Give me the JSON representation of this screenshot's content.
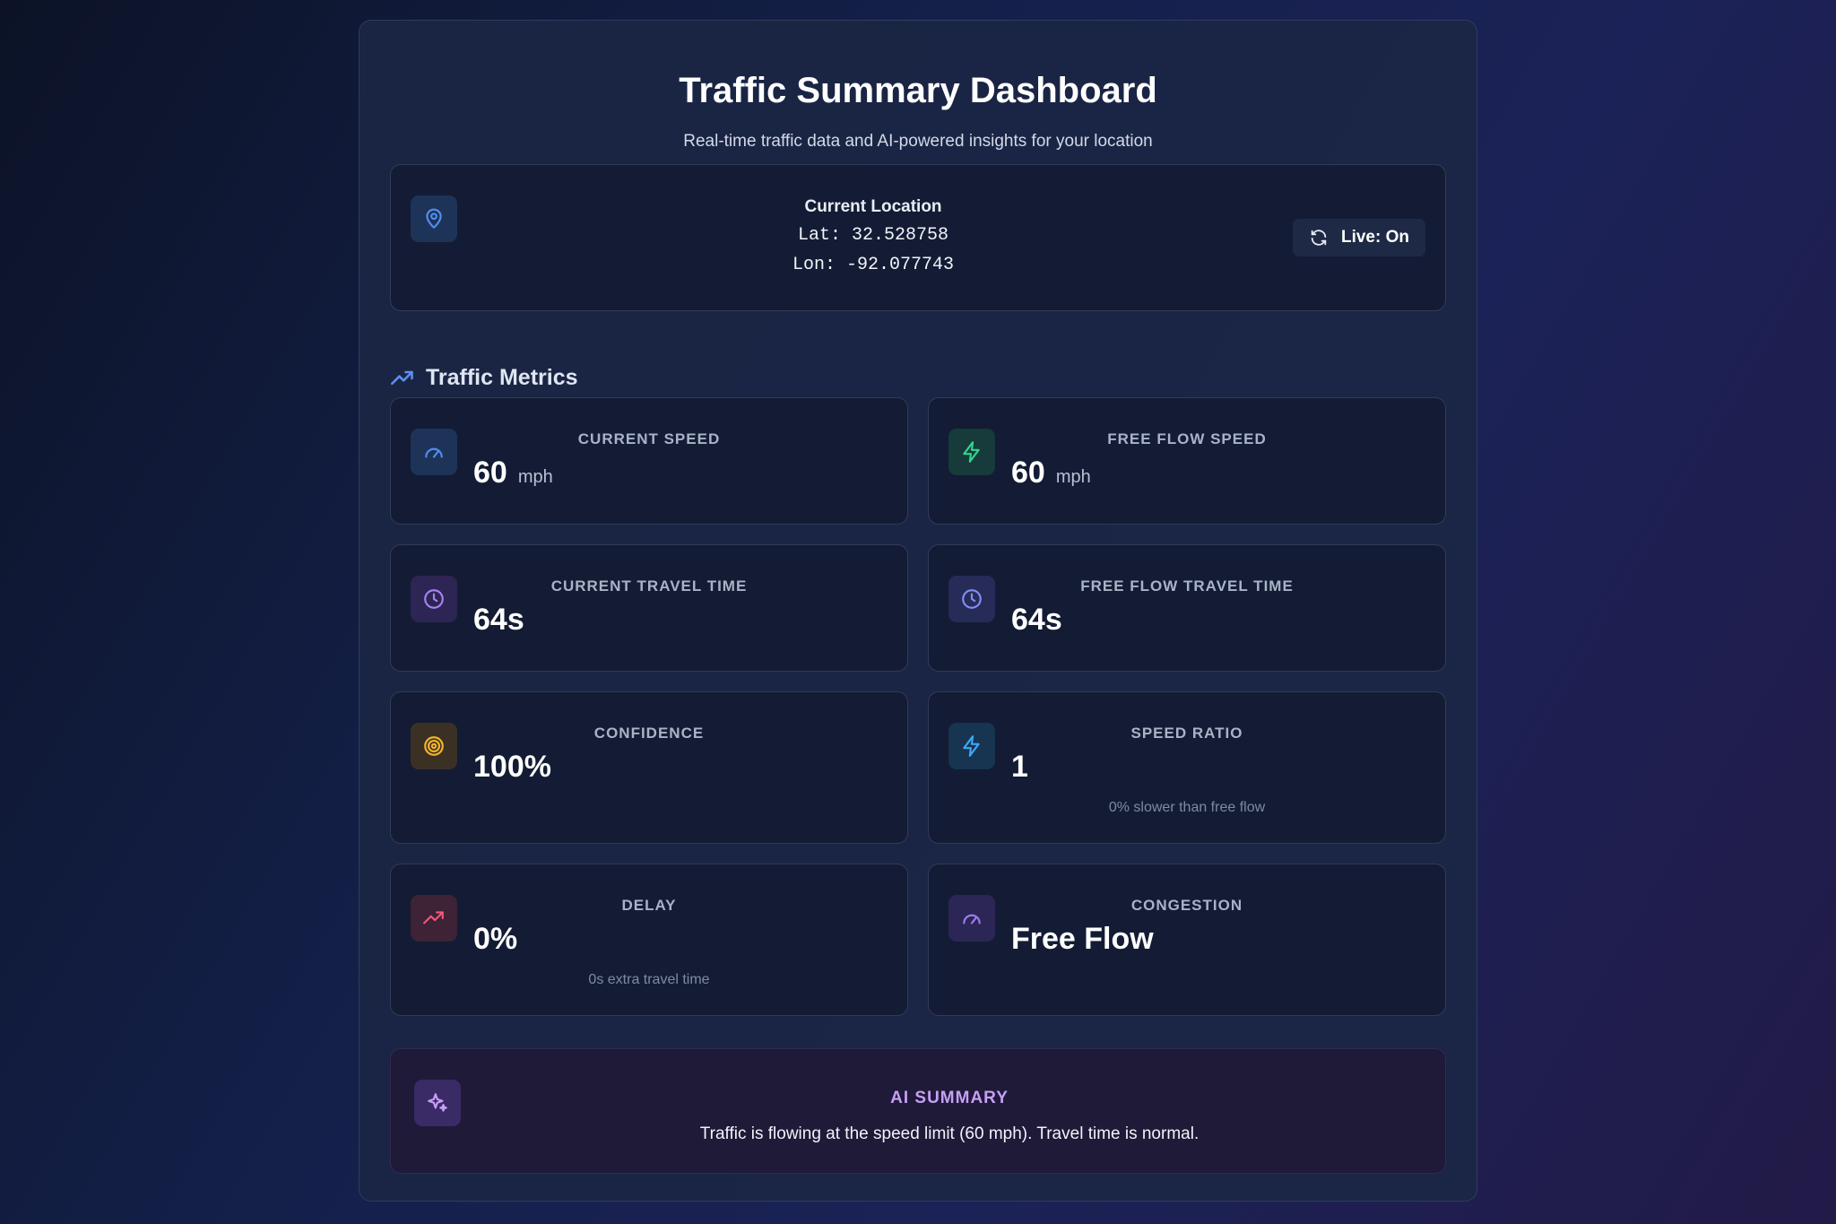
{
  "header": {
    "title": "Traffic Summary Dashboard",
    "subtitle": "Real-time traffic data and AI-powered insights for your location"
  },
  "location": {
    "label": "Current Location",
    "lat": "Lat: 32.528758",
    "lon": "Lon: -92.077743",
    "live_label": "Live: On",
    "icon": "map-pin-icon"
  },
  "metrics_section": {
    "title": "Traffic Metrics",
    "icon": "trending-up-icon"
  },
  "metrics": {
    "current_speed": {
      "label": "CURRENT SPEED",
      "value": "60",
      "unit": "mph",
      "icon": "gauge-icon",
      "color": "#4f8ff0"
    },
    "free_flow_speed": {
      "label": "FREE FLOW SPEED",
      "value": "60",
      "unit": "mph",
      "icon": "zap-icon",
      "color": "#2fd48f"
    },
    "current_travel_time": {
      "label": "CURRENT TRAVEL TIME",
      "value": "64s",
      "icon": "clock-icon",
      "color": "#a782f2"
    },
    "free_flow_travel_time": {
      "label": "FREE FLOW TRAVEL TIME",
      "value": "64s",
      "icon": "clock-icon",
      "color": "#7f8cf2"
    },
    "confidence": {
      "label": "CONFIDENCE",
      "value": "100%",
      "icon": "target-icon",
      "color": "#f5b42a"
    },
    "speed_ratio": {
      "label": "SPEED RATIO",
      "value": "1",
      "note": "0% slower than free flow",
      "icon": "zap-icon",
      "color": "#3aa8f5"
    },
    "delay": {
      "label": "DELAY",
      "value": "0%",
      "note": "0s extra travel time",
      "icon": "trending-up-icon",
      "color": "#f0577a"
    },
    "congestion": {
      "label": "CONGESTION",
      "value": "Free Flow",
      "icon": "gauge-icon",
      "color": "#9d7cf2"
    }
  },
  "ai_summary": {
    "title": "AI SUMMARY",
    "text": "Traffic is flowing at the speed limit (60 mph). Travel time is normal.",
    "icon": "sparkles-icon",
    "color": "#c79ff5"
  }
}
